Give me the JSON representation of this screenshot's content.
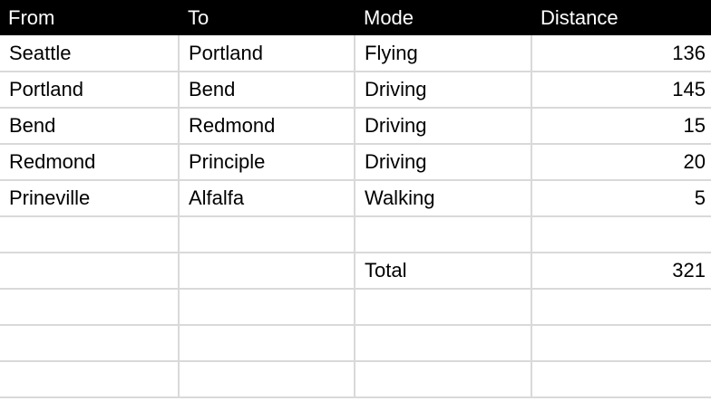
{
  "headers": [
    "From",
    "To",
    "Mode",
    "Distance"
  ],
  "rows": [
    {
      "from": "Seattle",
      "to": "Portland",
      "mode": "Flying",
      "distance": "136"
    },
    {
      "from": "Portland",
      "to": "Bend",
      "mode": "Driving",
      "distance": "145"
    },
    {
      "from": "Bend",
      "to": "Redmond",
      "mode": "Driving",
      "distance": "15"
    },
    {
      "from": "Redmond",
      "to": "Principle",
      "mode": "Driving",
      "distance": "20"
    },
    {
      "from": "Prineville",
      "to": "Alfalfa",
      "mode": "Walking",
      "distance": "5"
    }
  ],
  "total": {
    "label": "Total",
    "value": "321"
  }
}
